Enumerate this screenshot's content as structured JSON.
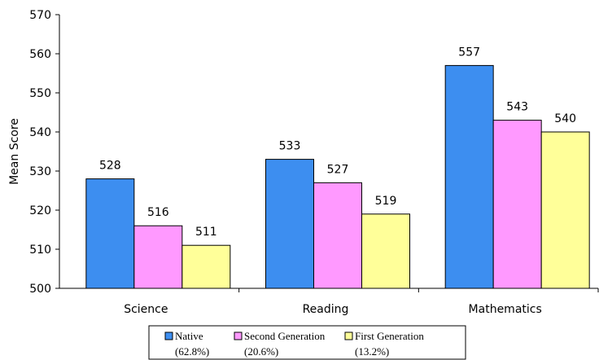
{
  "chart_data": {
    "type": "bar",
    "categories": [
      "Science",
      "Reading",
      "Mathematics"
    ],
    "series": [
      {
        "name": "Native",
        "sub": "(62.8%)",
        "color": "#3d8ef0",
        "values": [
          528,
          533,
          557
        ]
      },
      {
        "name": "Second Generation",
        "sub": "(20.6%)",
        "color": "#ff99ff",
        "values": [
          516,
          527,
          543
        ]
      },
      {
        "name": "First Generation",
        "sub": "(13.2%)",
        "color": "#ffff99",
        "values": [
          511,
          519,
          540
        ]
      }
    ],
    "data_labels": [
      [
        "528",
        "533",
        "557"
      ],
      [
        "516",
        "527",
        "543"
      ],
      [
        "511",
        "519",
        "540"
      ]
    ],
    "title": "",
    "xlabel": "",
    "ylabel": "Mean Score",
    "ylim": [
      500,
      570
    ],
    "yticks": [
      "500",
      "510",
      "520",
      "530",
      "540",
      "550",
      "560",
      "570"
    ],
    "grid": false,
    "legend_position": "bottom"
  }
}
